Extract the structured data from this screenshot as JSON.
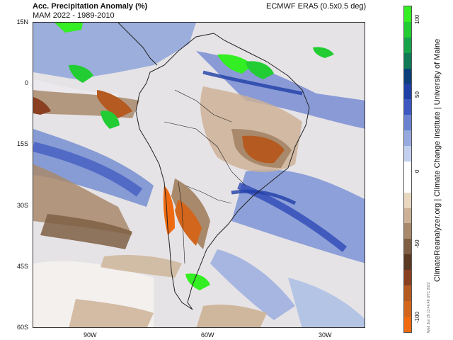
{
  "header": {
    "title": "Acc. Precipitation Anomaly (%)",
    "subtitle": "MAM 2022 - 1989-2010",
    "dataset": "ECMWF ERA5 (0.5x0.5 deg)"
  },
  "map": {
    "lat_labels": [
      "15N",
      "0",
      "15S",
      "30S",
      "45S",
      "60S"
    ],
    "lon_labels": [
      "90W",
      "60W",
      "30W"
    ],
    "region": "South America"
  },
  "colorbar": {
    "tick_labels": [
      "100",
      "50",
      "0",
      "-50",
      "-100"
    ],
    "colors": [
      "#33ee22",
      "#22cc33",
      "#16a34a",
      "#0f7a55",
      "#0d3f7a",
      "#1f3fa8",
      "#3d58c0",
      "#6a82d0",
      "#97aae0",
      "#c2cfee",
      "#ffffff",
      "#ffffff",
      "#e8d8c0",
      "#ccb196",
      "#a8896b",
      "#7e5f44",
      "#5a3a22",
      "#8a4020",
      "#b55a20",
      "#d2661c",
      "#ef6a10"
    ]
  },
  "credit": "ClimateReanalyzer.org | Climate Change Institute | University of Maine",
  "timestamp": "Wed Jun 29 13:46:48 UTC 2022"
}
